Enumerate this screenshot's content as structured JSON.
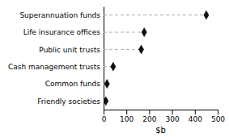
{
  "chart_data": {
    "type": "lollipop",
    "orientation": "horizontal",
    "categories": [
      "Friendly societies",
      "Common funds",
      "Cash management trusts",
      "Public unit trusts",
      "Life insurance offices",
      "Superannuation funds"
    ],
    "values": [
      10,
      15,
      42,
      165,
      178,
      450
    ],
    "xlabel": "$b",
    "xlim": [
      0,
      500
    ],
    "xticks": [
      0,
      100,
      200,
      300,
      400,
      500
    ],
    "color": "#111111",
    "marker": "diamond",
    "line_style": "dashed",
    "grid": false
  }
}
